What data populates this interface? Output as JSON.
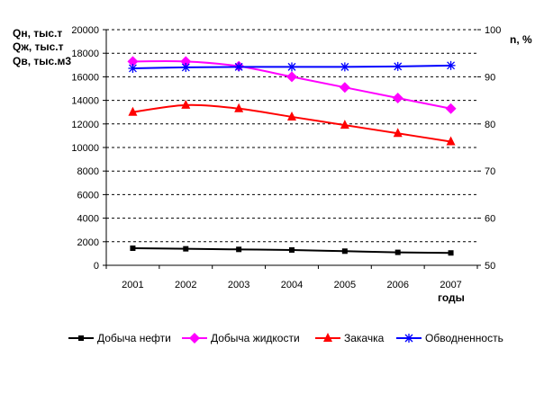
{
  "chart_data": {
    "type": "line",
    "left_axis_label": [
      "Qн, тыс.т",
      "Qж, тыс.т",
      "Qв, тыс.м3"
    ],
    "right_axis_label": "n, %",
    "xlabel": "годы",
    "categories": [
      "2001",
      "2002",
      "2003",
      "2004",
      "2005",
      "2006",
      "2007"
    ],
    "ylim_left": [
      0,
      20000
    ],
    "yticks_left": [
      "0",
      "2000",
      "4000",
      "6000",
      "8000",
      "10000",
      "12000",
      "14000",
      "16000",
      "18000",
      "20000"
    ],
    "ylim_right": [
      50,
      100
    ],
    "yticks_right": [
      "50",
      "60",
      "70",
      "80",
      "90",
      "100"
    ],
    "grid": true,
    "legend_position": "bottom",
    "series": [
      {
        "name": "Добыча нефти",
        "axis": "left",
        "color": "#000000",
        "marker": "square",
        "values": [
          1450,
          1400,
          1350,
          1300,
          1200,
          1100,
          1050
        ]
      },
      {
        "name": "Добыча жидкости",
        "axis": "left",
        "color": "#ff00ff",
        "marker": "diamond",
        "values": [
          17300,
          17300,
          16900,
          16000,
          15100,
          14200,
          13300
        ]
      },
      {
        "name": "Закачка",
        "axis": "left",
        "color": "#ff0000",
        "marker": "triangle",
        "values": [
          13000,
          13600,
          13300,
          12600,
          11900,
          11200,
          10500
        ]
      },
      {
        "name": "Обводненность",
        "axis": "right",
        "color": "#0000ff",
        "marker": "star",
        "values": [
          91.8,
          92.0,
          92.1,
          92.1,
          92.1,
          92.2,
          92.4
        ]
      }
    ]
  }
}
